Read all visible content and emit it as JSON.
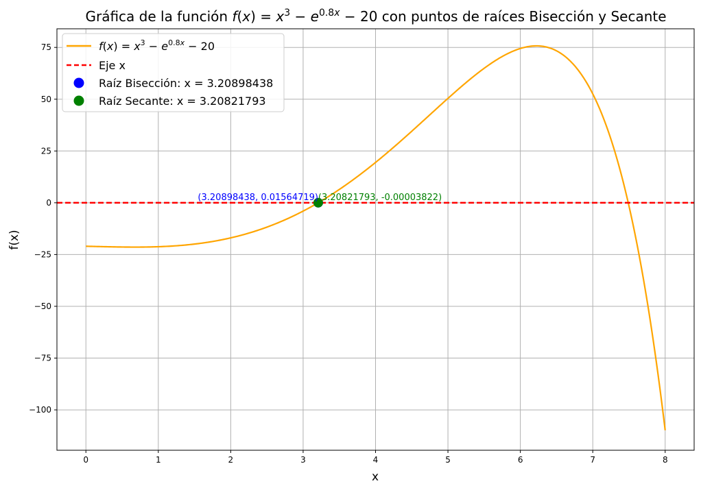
{
  "chart_data": {
    "type": "line",
    "title_plain": "Gráfica de la función ",
    "title_math": "f(x) = x³ − e^{0.8x} − 20",
    "title_suffix": " con puntos de raíces Bisección y Secante",
    "xlabel": "x",
    "ylabel": "f(x)",
    "xlim": [
      -0.4,
      8.4
    ],
    "ylim": [
      -119.5,
      84
    ],
    "x_ticks": [
      0,
      1,
      2,
      3,
      4,
      5,
      6,
      7,
      8
    ],
    "y_ticks": [
      75,
      50,
      25,
      0,
      -25,
      -50,
      -75,
      -100
    ],
    "grid": true,
    "legend_position": "top-left",
    "series": [
      {
        "name": "f(x) = x³ − e^{0.8x} − 20",
        "kind": "line",
        "color": "#FFA500",
        "x_range": [
          0,
          8
        ],
        "expression": "x^3 - exp(0.8*x) - 20"
      },
      {
        "name": "Eje x",
        "kind": "hline",
        "color": "#FF0000",
        "y": 0,
        "style": "dashed"
      },
      {
        "name": "Raíz Bisección: x = 3.20898438",
        "kind": "point",
        "color": "#0000FF",
        "x": 3.20898438,
        "y": 0.01564719
      },
      {
        "name": "Raíz Secante: x = 3.20821793",
        "kind": "point",
        "color": "#008000",
        "x": 3.20821793,
        "y": -3.822e-05
      }
    ],
    "annotations": [
      {
        "text": "(3.20898438, 0.01564719)",
        "x": 3.20898438,
        "y": 0.01564719,
        "color": "#0000FF",
        "anchor": "end"
      },
      {
        "text": "(3.20821793, -0.00003822)",
        "x": 3.20821793,
        "y": -3.822e-05,
        "color": "#008000",
        "anchor": "start"
      }
    ]
  },
  "y_tick_labels": [
    "75",
    "50",
    "25",
    "0",
    "−25",
    "−50",
    "−75",
    "−100"
  ]
}
